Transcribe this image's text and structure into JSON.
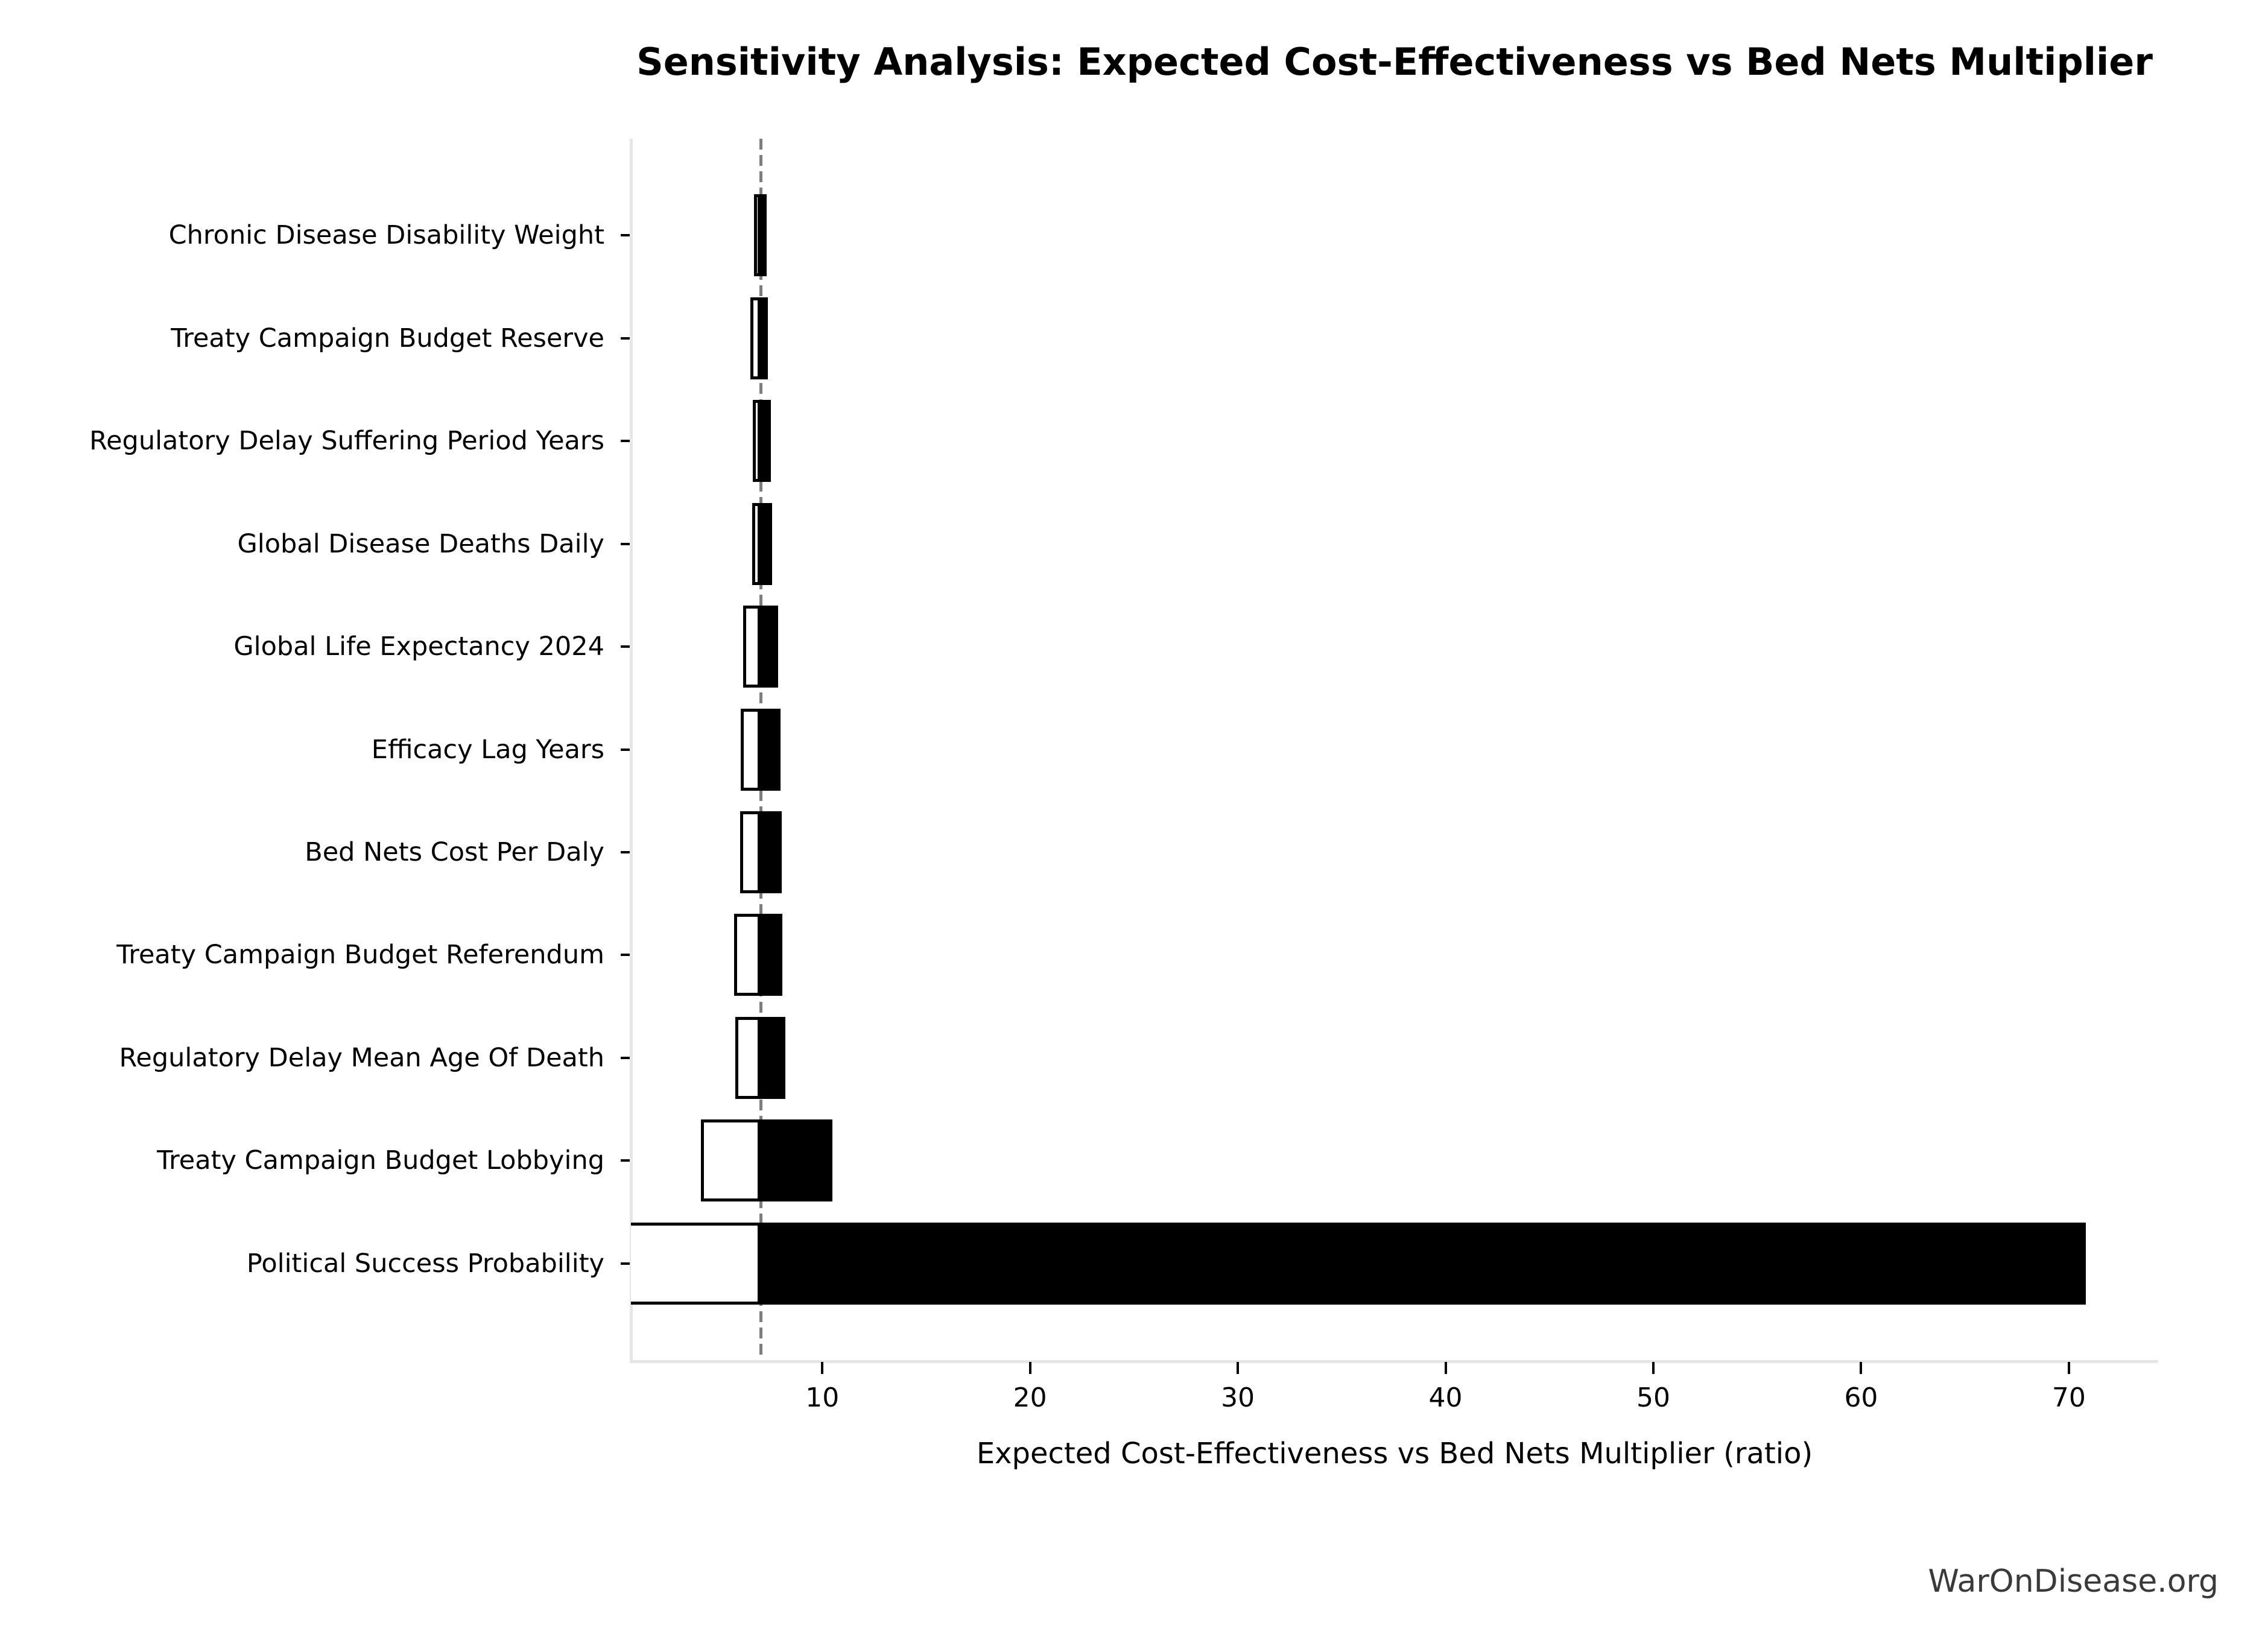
{
  "watermark": "WarOnDisease.org",
  "chart_data": {
    "type": "bar",
    "subtype": "tornado-sensitivity",
    "title": "Sensitivity Analysis: Expected Cost-Effectiveness vs Bed Nets Multiplier",
    "xlabel": "Expected Cost-Effectiveness vs Bed Nets Multiplier (ratio)",
    "ylabel": "",
    "base_value": 7.04,
    "xlim": [
      0.79,
      74.3
    ],
    "x_ticks": [
      10,
      20,
      30,
      40,
      50,
      60,
      70
    ],
    "grid": false,
    "legend_position": "none",
    "baseline_style": "vertical-dashed-gray-at-base-value",
    "colors": {
      "low_bar_fill": "#ffffff",
      "high_bar_fill": "#000000",
      "bar_edge": "#000000",
      "baseline": "#7d7d7d",
      "spine": "#e7e7e7",
      "watermark_text": "#3a3a3a"
    },
    "rows": [
      {
        "label": "Chronic Disease Disability Weight",
        "low": 6.72,
        "high": 7.31
      },
      {
        "label": "Treaty Campaign Budget Reserve",
        "low": 6.55,
        "high": 7.37
      },
      {
        "label": "Regulatory Delay Suffering Period Years",
        "low": 6.65,
        "high": 7.54
      },
      {
        "label": "Global Disease Deaths Daily",
        "low": 6.62,
        "high": 7.59
      },
      {
        "label": "Global Life Expectancy 2024",
        "low": 6.2,
        "high": 7.86
      },
      {
        "label": "Efficacy Lag Years",
        "low": 6.07,
        "high": 8.0
      },
      {
        "label": "Bed Nets Cost Per Daly",
        "low": 6.05,
        "high": 8.05
      },
      {
        "label": "Treaty Campaign Budget Referendum",
        "low": 5.75,
        "high": 8.08
      },
      {
        "label": "Regulatory Delay Mean Age Of Death",
        "low": 5.82,
        "high": 8.23
      },
      {
        "label": "Treaty Campaign Budget Lobbying",
        "low": 4.16,
        "high": 10.5
      },
      {
        "label": "Political Success Probability",
        "low": 0.7,
        "high": 70.83
      }
    ]
  }
}
